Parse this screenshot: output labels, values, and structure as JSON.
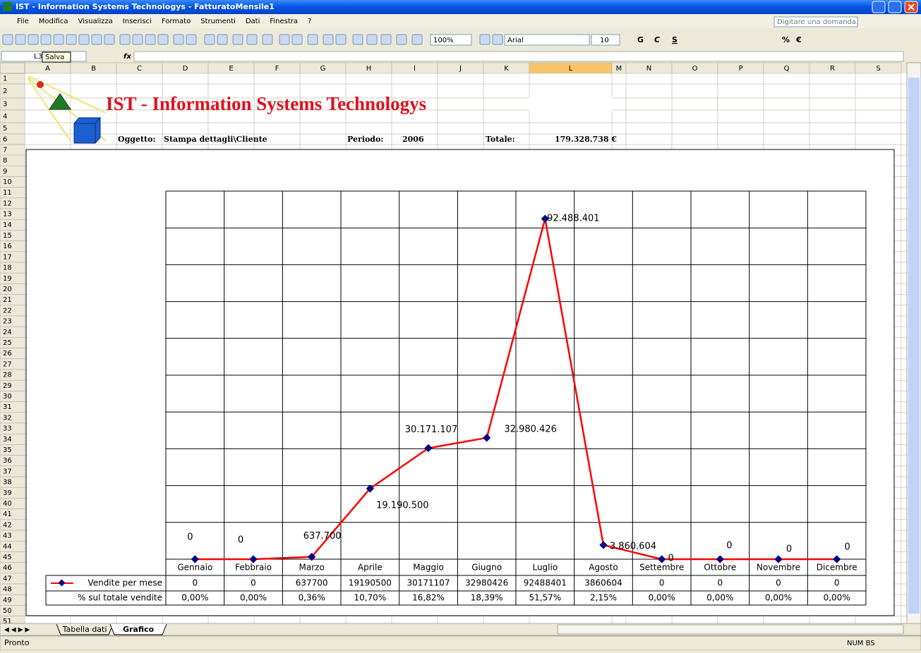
{
  "window": {
    "title": "IST - Information Systems Technologys - FatturatoMensile1"
  },
  "menu": {
    "items": [
      "File",
      "Modifica",
      "Visualizza",
      "Inserisci",
      "Formato",
      "Strumenti",
      "Dati",
      "Finestra",
      "?"
    ],
    "help": "Digitare una domanda."
  },
  "toolbar": {
    "zoom": "100%",
    "font": "Arial",
    "size": "10",
    "bold": "G",
    "italic": "C",
    "underline": "S",
    "percent": "%",
    "euro": "€"
  },
  "formula_bar": {
    "name_box": "L3",
    "tooltip": "Salva",
    "fx": "fx"
  },
  "columns": [
    "A",
    "B",
    "C",
    "D",
    "E",
    "F",
    "G",
    "H",
    "I",
    "J",
    "K",
    "L",
    "M",
    "N",
    "O",
    "P",
    "Q",
    "R",
    "S"
  ],
  "rows": [
    1,
    2,
    3,
    4,
    5,
    6,
    7,
    8,
    9,
    10,
    11,
    12,
    13,
    14,
    15,
    16,
    17,
    18,
    19,
    20,
    21,
    22,
    23,
    24,
    25,
    26,
    27,
    28,
    29,
    30,
    31,
    32,
    33,
    34,
    35,
    36,
    37,
    38,
    39,
    40,
    41,
    42,
    43,
    44,
    45,
    46,
    47,
    48,
    49,
    50,
    51
  ],
  "sheet": {
    "heading": "IST - Information Systems Technologys",
    "subject_label": "Oggetto:",
    "subject": "Stampa dettagli\\Cliente",
    "period_label": "Periodo:",
    "period": "2006",
    "total_label": "Totale:",
    "total": "179.328.738 €"
  },
  "chart_data": {
    "type": "line",
    "categories": [
      "Gennaio",
      "Febbraio",
      "Marzo",
      "Aprile",
      "Maggio",
      "Giugno",
      "Luglio",
      "Agosto",
      "Settembre",
      "Ottobre",
      "Novembre",
      "Dicembre"
    ],
    "series": [
      {
        "name": "Vendite per mese",
        "color": "#ff0000",
        "marker_color": "#000080",
        "values": [
          0,
          0,
          637700,
          19190500,
          30171107,
          32980426,
          92488401,
          3860604,
          0,
          0,
          0,
          0
        ],
        "value_labels": [
          "0",
          "0",
          "637.700",
          "19.190.500",
          "30.171.107",
          "32.980.426",
          "92.488.401",
          "3.860.604",
          "0",
          "0",
          "0",
          "0"
        ]
      }
    ],
    "ylim": [
      0,
      100000000
    ],
    "yticks": [
      0,
      10000000,
      20000000,
      30000000,
      40000000,
      50000000,
      60000000,
      70000000,
      80000000,
      90000000,
      100000000
    ],
    "grid": true,
    "table": {
      "percent_name": "% sul totale vendite",
      "percent_labels": [
        "0,00%",
        "0,00%",
        "0,36%",
        "10,70%",
        "16,82%",
        "18,39%",
        "51,57%",
        "2,15%",
        "0,00%",
        "0,00%",
        "0,00%",
        "0,00%"
      ]
    }
  },
  "tabs": [
    "Tabella dati",
    "Grafico"
  ],
  "status": {
    "left": "Pronto",
    "right": "NUM BS"
  }
}
